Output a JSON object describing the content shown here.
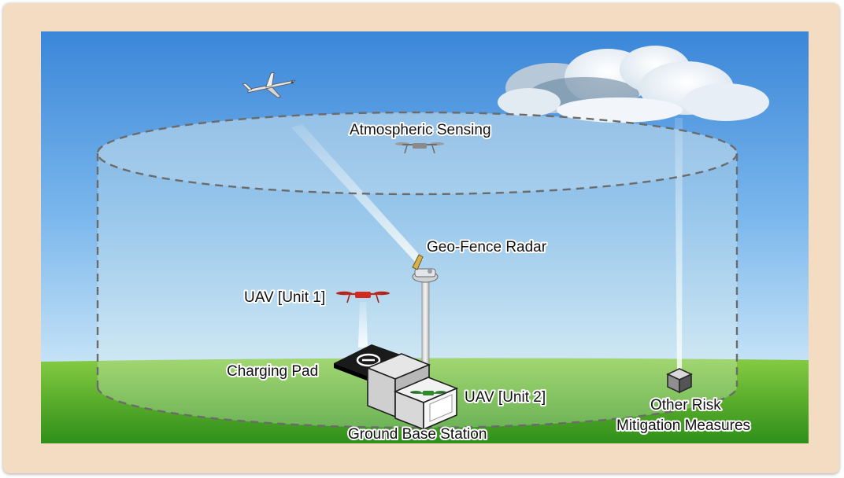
{
  "labels": {
    "atmospheric_sensing": "Atmospheric Sensing",
    "geo_fence_radar": "Geo-Fence Radar",
    "uav_unit_1": "UAV [Unit 1]",
    "charging_pad": "Charging Pad",
    "uav_unit_2": "UAV [Unit 2]",
    "ground_base_station": "Ground Base Station",
    "other_risk_line1": "Other Risk",
    "other_risk_line2": "Mitigation Measures"
  },
  "colors": {
    "sky_top": "#3a86d8",
    "sky_bottom": "#b9dcf5",
    "grass_top": "#7cc43a",
    "grass_bottom": "#2f8f1a",
    "frame": "#f3dcc2",
    "uav_unit_1": "#d42a1e",
    "uav_unit_2": "#2e8a2e",
    "boundary_dash": "#6b6b6b"
  },
  "icons": {
    "fixed_wing_aircraft": "fixed-wing-icon",
    "sensing_drone": "quadcopter-icon",
    "radar": "radar-icon",
    "charging_pad": "charging-pad-icon",
    "base_station": "base-station-box-icon",
    "risk_measure": "cube-icon",
    "cloud": "cloud-icon"
  }
}
